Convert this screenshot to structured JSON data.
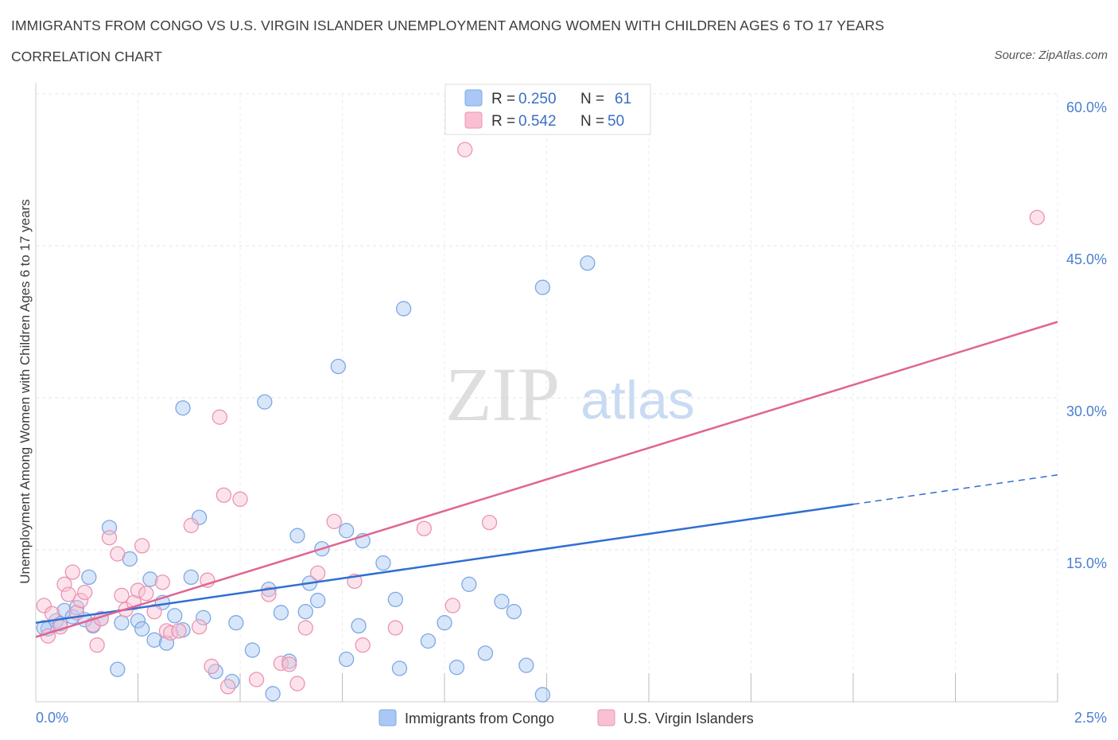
{
  "header": {
    "title": "IMMIGRANTS FROM CONGO VS U.S. VIRGIN ISLANDER UNEMPLOYMENT AMONG WOMEN WITH CHILDREN AGES 6 TO 17 YEARS",
    "subtitle": "CORRELATION CHART",
    "source": "Source: ZipAtlas.com"
  },
  "watermark": {
    "zip": "ZIP",
    "atlas": "atlas"
  },
  "legend": {
    "r_label": "R =",
    "n_label": "N =",
    "series": [
      {
        "r": "0.250",
        "n": "61",
        "color": "#a9c8f5",
        "stroke": "#7ea8e3"
      },
      {
        "r": "0.542",
        "n": "50",
        "color": "#f8c0d2",
        "stroke": "#ec93b0"
      }
    ]
  },
  "chart_data": {
    "type": "scatter",
    "title": "IMMIGRANTS FROM CONGO VS U.S. VIRGIN ISLANDER UNEMPLOYMENT AMONG WOMEN WITH CHILDREN AGES 6 TO 17 YEARS",
    "xlabel": "",
    "ylabel": "Unemployment Among Women with Children Ages 6 to 17 years",
    "xlim": [
      0,
      2.5
    ],
    "ylim": [
      0,
      60
    ],
    "x_tick_labels": [
      "0.0%",
      "2.5%"
    ],
    "y_ticks": [
      15,
      30,
      45,
      60
    ],
    "y_tick_labels": [
      "15.0%",
      "30.0%",
      "45.0%",
      "60.0%"
    ],
    "grid": true,
    "legend_position": "top-center",
    "series": [
      {
        "name": "Immigrants from Congo",
        "color": "#a9c8f5",
        "line_color": "#2f6fd0",
        "trend": {
          "x0": 0.0,
          "y0": 7.8,
          "x1": 2.0,
          "y1": 19.5,
          "x_dash_end": 2.5,
          "y_dash_end": 22.4
        },
        "points": [
          [
            0.03,
            7.2
          ],
          [
            0.05,
            8.0
          ],
          [
            0.07,
            9.0
          ],
          [
            0.09,
            8.4
          ],
          [
            0.1,
            9.3
          ],
          [
            0.13,
            12.3
          ],
          [
            0.14,
            7.5
          ],
          [
            0.16,
            8.2
          ],
          [
            0.18,
            17.2
          ],
          [
            0.2,
            3.2
          ],
          [
            0.21,
            7.8
          ],
          [
            0.23,
            14.1
          ],
          [
            0.25,
            8.0
          ],
          [
            0.26,
            7.2
          ],
          [
            0.28,
            12.1
          ],
          [
            0.29,
            6.1
          ],
          [
            0.31,
            9.8
          ],
          [
            0.32,
            5.8
          ],
          [
            0.34,
            8.5
          ],
          [
            0.36,
            7.1
          ],
          [
            0.36,
            29.0
          ],
          [
            0.38,
            12.3
          ],
          [
            0.4,
            18.2
          ],
          [
            0.41,
            8.3
          ],
          [
            0.44,
            3.0
          ],
          [
            0.48,
            2.0
          ],
          [
            0.49,
            7.8
          ],
          [
            0.53,
            5.1
          ],
          [
            0.56,
            29.6
          ],
          [
            0.57,
            11.1
          ],
          [
            0.58,
            0.8
          ],
          [
            0.6,
            8.8
          ],
          [
            0.62,
            4.0
          ],
          [
            0.64,
            16.4
          ],
          [
            0.66,
            8.9
          ],
          [
            0.67,
            11.7
          ],
          [
            0.69,
            10.0
          ],
          [
            0.7,
            15.1
          ],
          [
            0.74,
            33.1
          ],
          [
            0.76,
            4.2
          ],
          [
            0.76,
            16.9
          ],
          [
            0.79,
            7.5
          ],
          [
            0.8,
            15.9
          ],
          [
            0.85,
            13.7
          ],
          [
            0.88,
            10.1
          ],
          [
            0.89,
            3.3
          ],
          [
            0.9,
            38.8
          ],
          [
            0.96,
            6.0
          ],
          [
            1.0,
            7.8
          ],
          [
            1.03,
            3.4
          ],
          [
            1.06,
            11.6
          ],
          [
            1.1,
            4.8
          ],
          [
            1.14,
            9.9
          ],
          [
            1.17,
            8.9
          ],
          [
            1.2,
            3.6
          ],
          [
            1.24,
            40.9
          ],
          [
            1.24,
            0.7
          ],
          [
            1.35,
            43.3
          ],
          [
            0.02,
            7.3
          ],
          [
            0.12,
            8.1
          ],
          [
            0.06,
            7.7
          ]
        ]
      },
      {
        "name": "U.S. Virgin Islanders",
        "color": "#f8c0d2",
        "line_color": "#e06593",
        "trend": {
          "x0": 0.0,
          "y0": 6.4,
          "x1": 2.5,
          "y1": 37.5
        },
        "points": [
          [
            0.02,
            9.5
          ],
          [
            0.04,
            8.7
          ],
          [
            0.06,
            7.4
          ],
          [
            0.07,
            11.6
          ],
          [
            0.08,
            10.6
          ],
          [
            0.09,
            12.8
          ],
          [
            0.1,
            8.8
          ],
          [
            0.11,
            10.0
          ],
          [
            0.12,
            10.8
          ],
          [
            0.14,
            7.6
          ],
          [
            0.15,
            5.6
          ],
          [
            0.16,
            8.2
          ],
          [
            0.18,
            16.2
          ],
          [
            0.2,
            14.6
          ],
          [
            0.21,
            10.5
          ],
          [
            0.22,
            9.1
          ],
          [
            0.24,
            9.8
          ],
          [
            0.25,
            11.0
          ],
          [
            0.26,
            15.4
          ],
          [
            0.27,
            10.7
          ],
          [
            0.29,
            8.9
          ],
          [
            0.31,
            11.8
          ],
          [
            0.32,
            7.0
          ],
          [
            0.33,
            6.8
          ],
          [
            0.35,
            7.0
          ],
          [
            0.38,
            17.4
          ],
          [
            0.4,
            7.4
          ],
          [
            0.42,
            12.0
          ],
          [
            0.43,
            3.5
          ],
          [
            0.45,
            28.1
          ],
          [
            0.46,
            20.4
          ],
          [
            0.47,
            1.5
          ],
          [
            0.5,
            20.0
          ],
          [
            0.54,
            2.2
          ],
          [
            0.57,
            10.6
          ],
          [
            0.6,
            3.8
          ],
          [
            0.62,
            3.7
          ],
          [
            0.64,
            1.8
          ],
          [
            0.66,
            7.3
          ],
          [
            0.69,
            12.7
          ],
          [
            0.73,
            17.8
          ],
          [
            0.78,
            11.9
          ],
          [
            0.8,
            5.6
          ],
          [
            0.88,
            7.3
          ],
          [
            0.95,
            17.1
          ],
          [
            1.02,
            9.5
          ],
          [
            1.05,
            54.5
          ],
          [
            1.11,
            17.7
          ],
          [
            2.45,
            47.8
          ],
          [
            0.03,
            6.5
          ]
        ]
      }
    ]
  }
}
